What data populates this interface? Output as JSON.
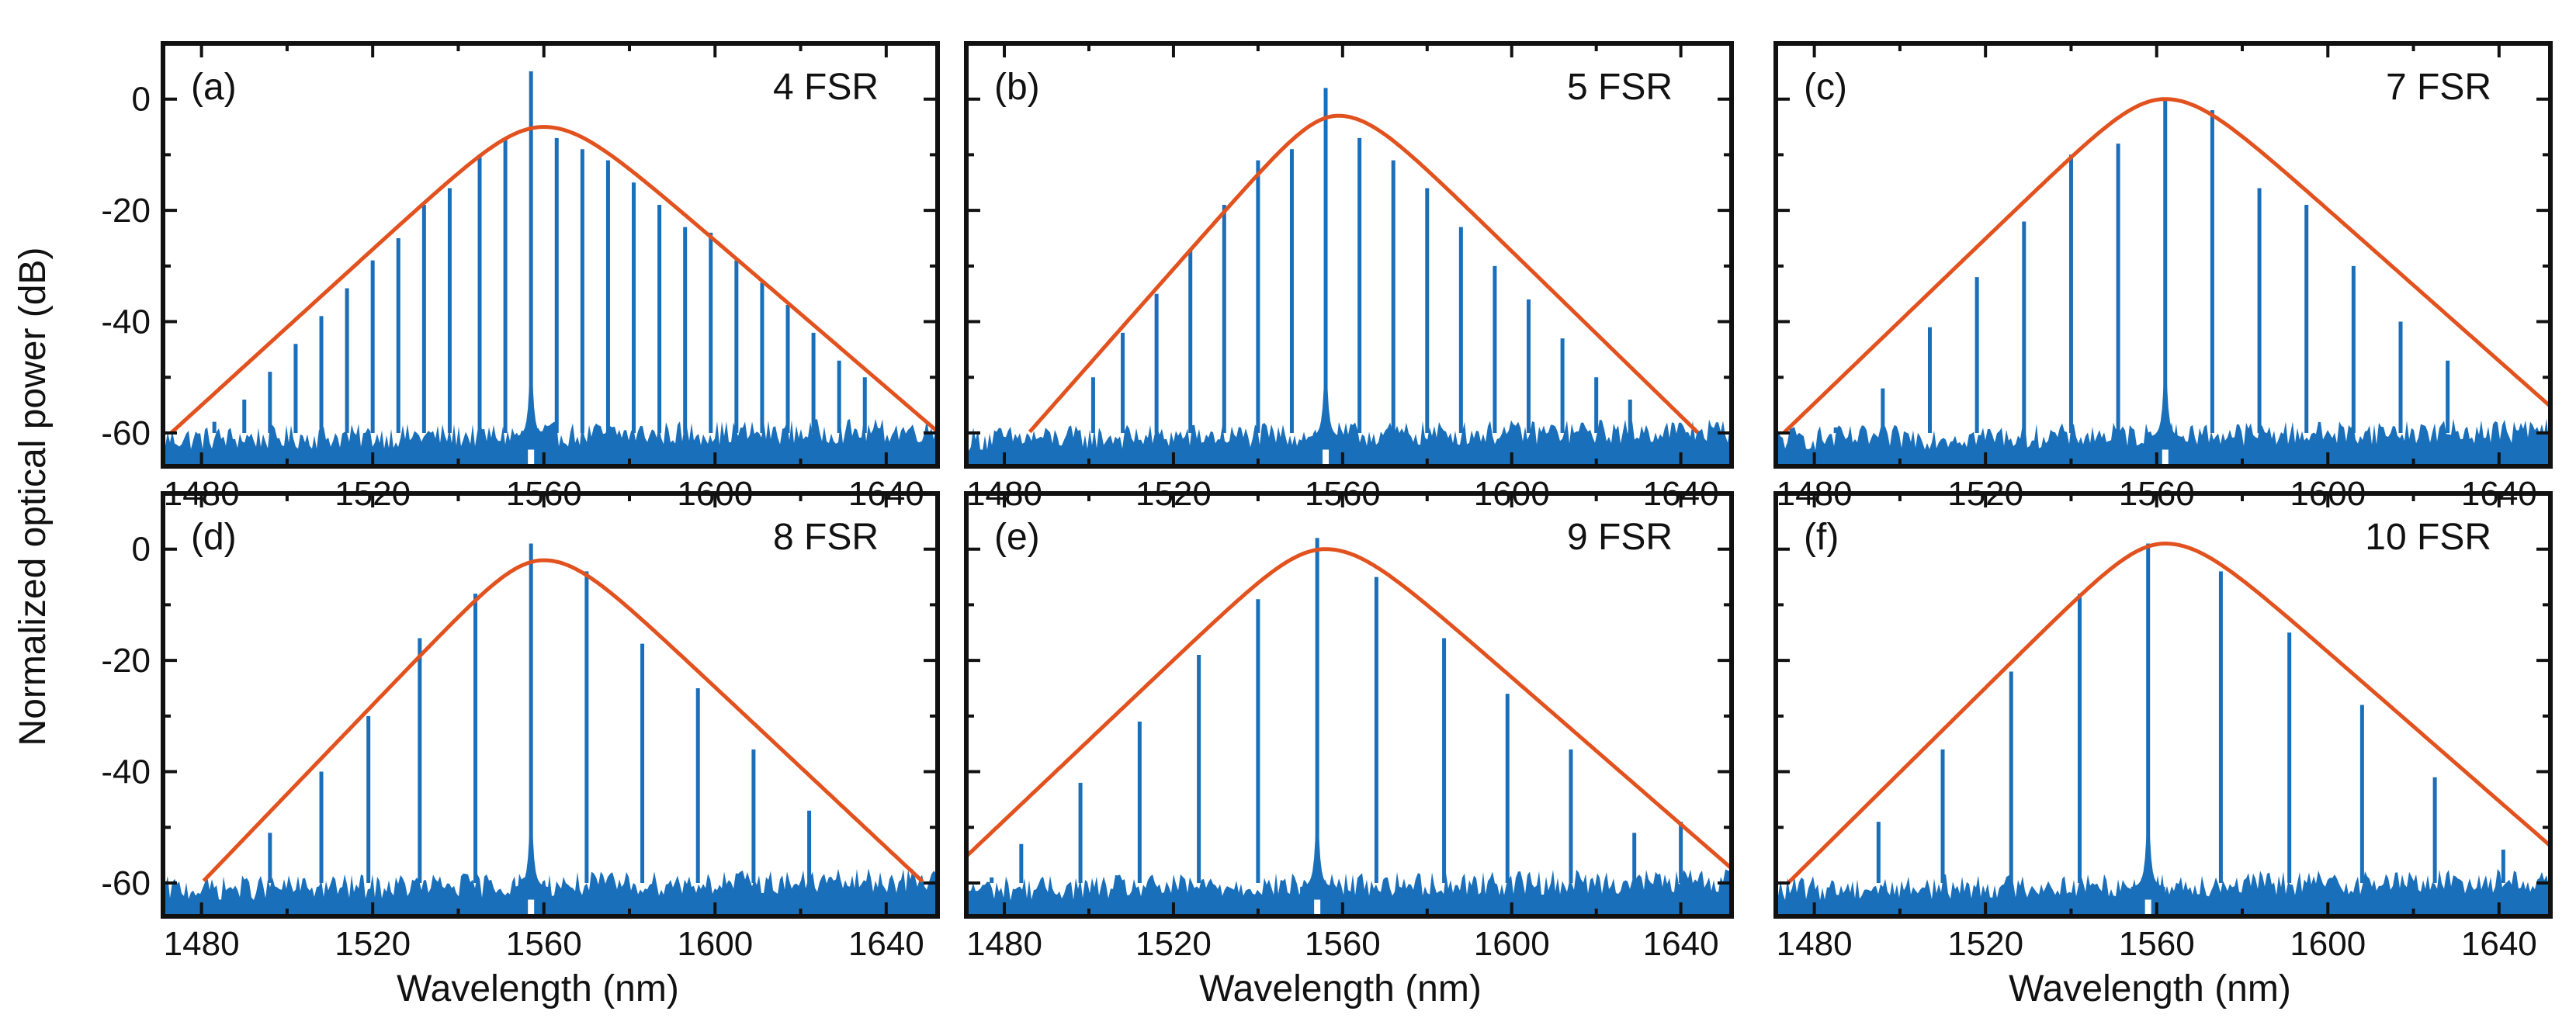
{
  "figure": {
    "ylabel": "Normalized optical power (dB)",
    "xlabel": "Wavelength (nm)"
  },
  "colors": {
    "spectrum": "#1a6fba",
    "envelope": "#e2521f",
    "axes": "#111111"
  },
  "chart_data": [
    {
      "type": "line",
      "label": "(a)",
      "annotation": "4 FSR",
      "xlim": [
        1471,
        1652
      ],
      "ylim": [
        -66,
        10
      ],
      "xticks": [
        1480,
        1520,
        1560,
        1600,
        1640
      ],
      "yticks": [
        0,
        -20,
        -40,
        -60
      ],
      "noise_floor": -61,
      "envelope": {
        "center": 1560,
        "peak": -5,
        "slope_left": 0.7,
        "slope_right": 0.66
      },
      "lines": [
        [
          1483,
          -58
        ],
        [
          1490,
          -54
        ],
        [
          1496,
          -49
        ],
        [
          1502,
          -44
        ],
        [
          1508,
          -39
        ],
        [
          1514,
          -34
        ],
        [
          1520,
          -29
        ],
        [
          1526,
          -25
        ],
        [
          1532,
          -19
        ],
        [
          1538,
          -16
        ],
        [
          1545,
          -10
        ],
        [
          1551,
          -7
        ],
        [
          1557,
          5
        ],
        [
          1563,
          -7
        ],
        [
          1569,
          -9
        ],
        [
          1575,
          -11
        ],
        [
          1581,
          -15
        ],
        [
          1587,
          -19
        ],
        [
          1593,
          -23
        ],
        [
          1599,
          -24
        ],
        [
          1605,
          -29
        ],
        [
          1611,
          -33
        ],
        [
          1617,
          -37
        ],
        [
          1623,
          -42
        ],
        [
          1629,
          -47
        ],
        [
          1635,
          -50
        ]
      ]
    },
    {
      "type": "line",
      "label": "(b)",
      "annotation": "5 FSR",
      "xlim": [
        1471,
        1652
      ],
      "ylim": [
        -66,
        10
      ],
      "xticks": [
        1480,
        1520,
        1560,
        1600,
        1640
      ],
      "yticks": [
        0,
        -20,
        -40,
        -60
      ],
      "noise_floor": -61,
      "envelope": {
        "center": 1559,
        "peak": -3,
        "slope_left": 0.86,
        "slope_right": 0.74
      },
      "lines": [
        [
          1501,
          -50
        ],
        [
          1508,
          -42
        ],
        [
          1516,
          -35
        ],
        [
          1524,
          -27
        ],
        [
          1532,
          -19
        ],
        [
          1540,
          -11
        ],
        [
          1548,
          -9
        ],
        [
          1556,
          2
        ],
        [
          1564,
          -7
        ],
        [
          1572,
          -11
        ],
        [
          1580,
          -16
        ],
        [
          1588,
          -23
        ],
        [
          1596,
          -30
        ],
        [
          1604,
          -36
        ],
        [
          1612,
          -43
        ],
        [
          1620,
          -50
        ],
        [
          1628,
          -54
        ]
      ]
    },
    {
      "type": "line",
      "label": "(c)",
      "annotation": "7 FSR",
      "xlim": [
        1471,
        1652
      ],
      "ylim": [
        -66,
        10
      ],
      "xticks": [
        1480,
        1520,
        1560,
        1600,
        1640
      ],
      "yticks": [
        0,
        -20,
        -40,
        -60
      ],
      "noise_floor": -61,
      "envelope": {
        "center": 1562,
        "peak": 0,
        "slope_left": 0.74,
        "slope_right": 0.68
      },
      "lines": [
        [
          1485,
          -59
        ],
        [
          1496,
          -52
        ],
        [
          1507,
          -41
        ],
        [
          1518,
          -32
        ],
        [
          1529,
          -22
        ],
        [
          1540,
          -10
        ],
        [
          1551,
          -8
        ],
        [
          1562,
          0
        ],
        [
          1573,
          -2
        ],
        [
          1584,
          -16
        ],
        [
          1595,
          -19
        ],
        [
          1606,
          -30
        ],
        [
          1617,
          -40
        ],
        [
          1628,
          -47
        ]
      ]
    },
    {
      "type": "line",
      "label": "(d)",
      "annotation": "8 FSR",
      "xlim": [
        1471,
        1652
      ],
      "ylim": [
        -66,
        10
      ],
      "xticks": [
        1480,
        1520,
        1560,
        1600,
        1640
      ],
      "yticks": [
        0,
        -20,
        -40,
        -60
      ],
      "noise_floor": -61,
      "envelope": {
        "center": 1560,
        "peak": -2,
        "slope_left": 0.8,
        "slope_right": 0.72
      },
      "lines": [
        [
          1484,
          -60
        ],
        [
          1496,
          -51
        ],
        [
          1508,
          -40
        ],
        [
          1519,
          -30
        ],
        [
          1531,
          -16
        ],
        [
          1544,
          -8
        ],
        [
          1557,
          1
        ],
        [
          1570,
          -4
        ],
        [
          1583,
          -17
        ],
        [
          1596,
          -25
        ],
        [
          1609,
          -36
        ],
        [
          1622,
          -47
        ]
      ]
    },
    {
      "type": "line",
      "label": "(e)",
      "annotation": "9 FSR",
      "xlim": [
        1471,
        1652
      ],
      "ylim": [
        -66,
        10
      ],
      "xticks": [
        1480,
        1520,
        1560,
        1600,
        1640
      ],
      "yticks": [
        0,
        -20,
        -40,
        -60
      ],
      "noise_floor": -61,
      "envelope": {
        "center": 1556,
        "peak": 0,
        "slope_left": 0.72,
        "slope_right": 0.66
      },
      "lines": [
        [
          1477,
          -59
        ],
        [
          1484,
          -53
        ],
        [
          1498,
          -42
        ],
        [
          1512,
          -31
        ],
        [
          1526,
          -19
        ],
        [
          1540,
          -9
        ],
        [
          1554,
          2
        ],
        [
          1568,
          -5
        ],
        [
          1584,
          -16
        ],
        [
          1599,
          -26
        ],
        [
          1614,
          -36
        ],
        [
          1629,
          -51
        ],
        [
          1640,
          -49
        ]
      ]
    },
    {
      "type": "line",
      "label": "(f)",
      "annotation": "10 FSR",
      "xlim": [
        1471,
        1652
      ],
      "ylim": [
        -66,
        10
      ],
      "xticks": [
        1480,
        1520,
        1560,
        1600,
        1640
      ],
      "yticks": [
        0,
        -20,
        -40,
        -60
      ],
      "noise_floor": -61,
      "envelope": {
        "center": 1562,
        "peak": 1,
        "slope_left": 0.76,
        "slope_right": 0.67
      },
      "lines": [
        [
          1495,
          -49
        ],
        [
          1510,
          -36
        ],
        [
          1526,
          -22
        ],
        [
          1542,
          -8
        ],
        [
          1558,
          1
        ],
        [
          1575,
          -4
        ],
        [
          1591,
          -15
        ],
        [
          1608,
          -28
        ],
        [
          1625,
          -41
        ],
        [
          1641,
          -54
        ]
      ]
    }
  ]
}
